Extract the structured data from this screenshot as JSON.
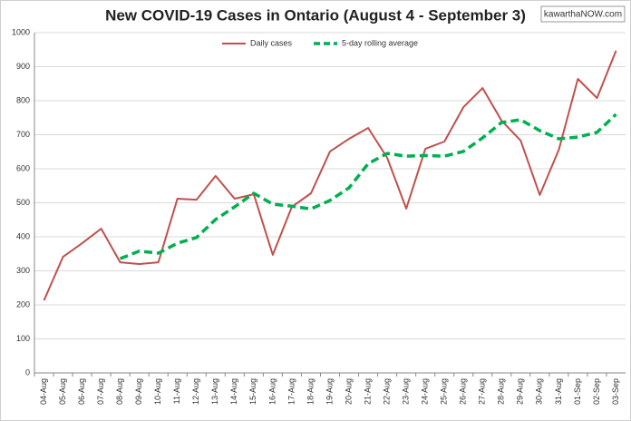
{
  "chart_data": {
    "type": "line",
    "title": "New COVID-19 Cases in Ontario (August 4 - September 3)",
    "watermark": "kawarthaNOW.com",
    "categories": [
      "04-Aug",
      "05-Aug",
      "06-Aug",
      "07-Aug",
      "08-Aug",
      "09-Aug",
      "10-Aug",
      "11-Aug",
      "12-Aug",
      "13-Aug",
      "14-Aug",
      "15-Aug",
      "16-Aug",
      "17-Aug",
      "18-Aug",
      "19-Aug",
      "20-Aug",
      "21-Aug",
      "22-Aug",
      "23-Aug",
      "24-Aug",
      "25-Aug",
      "26-Aug",
      "27-Aug",
      "28-Aug",
      "29-Aug",
      "30-Aug",
      "31-Aug",
      "01-Sep",
      "02-Sep",
      "03-Sep"
    ],
    "series": [
      {
        "name": "Daily cases",
        "color": "#c0504d",
        "dashed": false,
        "values": [
          213,
          341,
          381,
          424,
          325,
          320,
          325,
          512,
          509,
          579,
          512,
          525,
          347,
          488,
          528,
          651,
          688,
          720,
          632,
          483,
          659,
          680,
          781,
          837,
          741,
          683,
          523,
          656,
          864,
          808,
          947
        ]
      },
      {
        "name": "5-day rolling average",
        "color": "#00b050",
        "dashed": true,
        "values": [
          null,
          null,
          null,
          null,
          336,
          358,
          352,
          381,
          398,
          451,
          488,
          528,
          496,
          490,
          482,
          507,
          544,
          615,
          645,
          637,
          639,
          637,
          651,
          691,
          736,
          744,
          712,
          688,
          693,
          707,
          760
        ]
      }
    ],
    "ylim": [
      0,
      1000
    ],
    "yticks": [
      0,
      100,
      200,
      300,
      400,
      500,
      600,
      700,
      800,
      900,
      1000
    ],
    "grid": true,
    "legend": "top"
  }
}
